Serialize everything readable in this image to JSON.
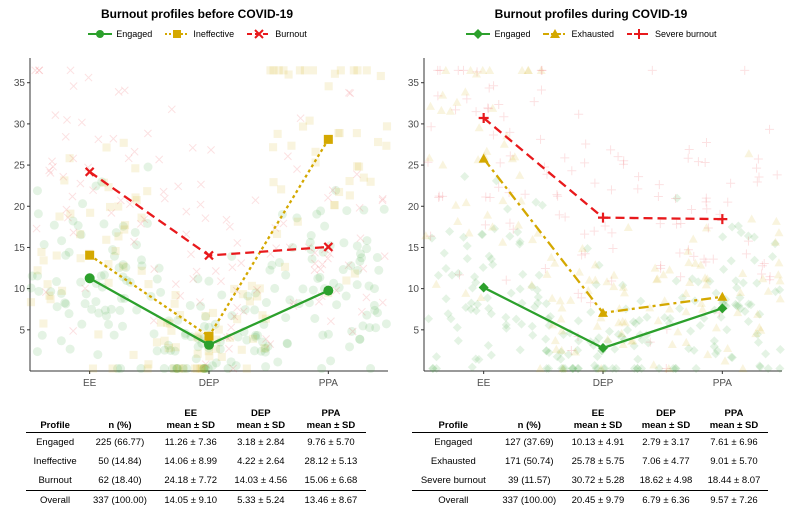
{
  "chart_data": [
    {
      "type": "line",
      "title": "Burnout profiles before COVID-19",
      "categories": [
        "EE",
        "DEP",
        "PPA"
      ],
      "yticks": [
        5,
        10,
        15,
        20,
        25,
        30,
        35
      ],
      "ylim": [
        0,
        38
      ],
      "grid": false,
      "legend_position": "top",
      "series": [
        {
          "name": "Engaged",
          "values": [
            11.26,
            3.18,
            9.76
          ],
          "color": "#2ca02c",
          "marker": "circle",
          "dash": "solid"
        },
        {
          "name": "Ineffective",
          "values": [
            14.06,
            4.22,
            28.12
          ],
          "color": "#d4a800",
          "marker": "square",
          "dash": "dotted"
        },
        {
          "name": "Burnout",
          "values": [
            24.18,
            14.03,
            15.06
          ],
          "color": "#e8191c",
          "marker": "x",
          "dash": "dashed"
        }
      ],
      "table": {
        "headers": [
          "Profile",
          "n (%)",
          "EE\nmean ± SD",
          "DEP\nmean ± SD",
          "PPA\nmean ± SD"
        ],
        "rows": [
          [
            "Engaged",
            "225 (66.77)",
            "11.26 ± 7.36",
            "3.18 ± 2.84",
            "9.76 ± 5.70"
          ],
          [
            "Ineffective",
            "50 (14.84)",
            "14.06 ± 8.99",
            "4.22 ± 2.64",
            "28.12 ± 5.13"
          ],
          [
            "Burnout",
            "62 (18.40)",
            "24.18 ± 7.72",
            "14.03 ± 4.56",
            "15.06 ± 6.68"
          ],
          [
            "Overall",
            "337 (100.00)",
            "14.05 ± 9.10",
            "5.33 ± 5.24",
            "13.46 ± 8.67"
          ]
        ]
      }
    },
    {
      "type": "line",
      "title": "Burnout profiles during COVID-19",
      "categories": [
        "EE",
        "DEP",
        "PPA"
      ],
      "yticks": [
        5,
        10,
        15,
        20,
        25,
        30,
        35
      ],
      "ylim": [
        0,
        38
      ],
      "grid": false,
      "legend_position": "top",
      "series": [
        {
          "name": "Engaged",
          "values": [
            10.13,
            2.79,
            7.61
          ],
          "color": "#2ca02c",
          "marker": "diamond",
          "dash": "solid"
        },
        {
          "name": "Exhausted",
          "values": [
            25.78,
            7.06,
            9.01
          ],
          "color": "#d4a800",
          "marker": "triangle",
          "dash": "dashdot"
        },
        {
          "name": "Severe burnout",
          "values": [
            30.72,
            18.62,
            18.44
          ],
          "color": "#e8191c",
          "marker": "plus",
          "dash": "dashed"
        }
      ],
      "table": {
        "headers": [
          "Profile",
          "n (%)",
          "EE\nmean ± SD",
          "DEP\nmean ± SD",
          "PPA\nmean ± SD"
        ],
        "rows": [
          [
            "Engaged",
            "127 (37.69)",
            "10.13 ± 4.91",
            "2.79 ± 3.17",
            "7.61 ± 6.96"
          ],
          [
            "Exhausted",
            "171 (50.74)",
            "25.78 ± 5.75",
            "7.06 ± 4.77",
            "9.01 ± 5.70"
          ],
          [
            "Severe burnout",
            "39 (11.57)",
            "30.72 ± 5.28",
            "18.62 ± 4.98",
            "18.44 ± 8.07"
          ],
          [
            "Overall",
            "337 (100.00)",
            "20.45 ± 9.79",
            "6.79 ± 6.36",
            "9.57 ± 7.26"
          ]
        ]
      }
    }
  ]
}
